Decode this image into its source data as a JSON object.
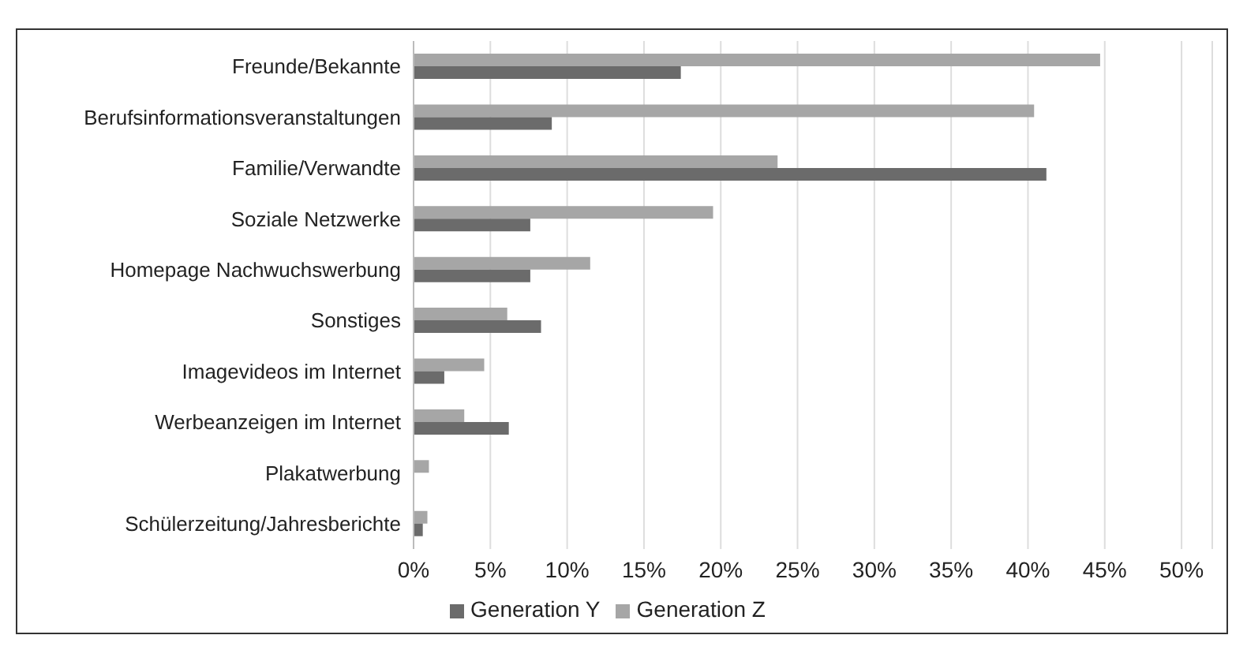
{
  "chart_data": {
    "type": "bar",
    "orientation": "horizontal",
    "categories": [
      "Freunde/Bekannte",
      "Berufsinformationsveranstaltungen",
      "Familie/Verwandte",
      "Soziale Netzwerke",
      "Homepage Nachwuchswerbung",
      "Sonstiges",
      "Imagevideos im Internet",
      "Werbeanzeigen im Internet",
      "Plakatwerbung",
      "Schülerzeitung/Jahresberichte"
    ],
    "series": [
      {
        "name": "Generation Z",
        "color": "#a6a6a6",
        "values": [
          44.7,
          40.4,
          23.7,
          19.5,
          11.5,
          6.1,
          4.6,
          3.3,
          1.0,
          0.9
        ]
      },
      {
        "name": "Generation Y",
        "color": "#6b6b6b",
        "values": [
          17.4,
          9.0,
          41.2,
          7.6,
          7.6,
          8.3,
          2.0,
          6.2,
          0,
          0.6
        ]
      }
    ],
    "xlim": [
      0,
      52
    ],
    "xticks": [
      {
        "value": 0,
        "label": "0%"
      },
      {
        "value": 5,
        "label": "5%"
      },
      {
        "value": 10,
        "label": "10%"
      },
      {
        "value": 15,
        "label": "15%"
      },
      {
        "value": 20,
        "label": "20%"
      },
      {
        "value": 25,
        "label": "25%"
      },
      {
        "value": 30,
        "label": "30%"
      },
      {
        "value": 35,
        "label": "35%"
      },
      {
        "value": 40,
        "label": "40%"
      },
      {
        "value": 45,
        "label": "45%"
      },
      {
        "value": 50,
        "label": "50%"
      }
    ],
    "grid": "x",
    "legend": "bottom"
  }
}
